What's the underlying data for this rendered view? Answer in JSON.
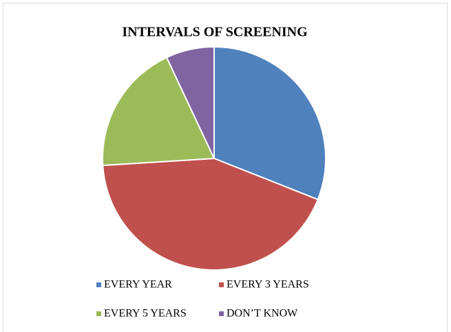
{
  "chart_data": {
    "type": "pie",
    "title": "INTERVALS OF SCREENING",
    "categories": [
      "EVERY YEAR",
      "EVERY 3 YEARS",
      "EVERY 5 YEARS",
      "DON’T KNOW"
    ],
    "values": [
      31,
      43,
      19,
      7
    ],
    "colors": [
      "#4f81bd",
      "#c0504d",
      "#9bbb59",
      "#8064a2"
    ],
    "legend": "bottom"
  }
}
